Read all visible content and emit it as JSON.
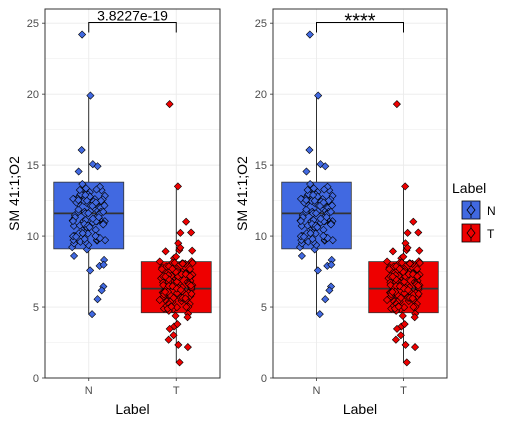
{
  "chart_data": [
    {
      "type": "boxplot",
      "panel": "left",
      "annotation": "3.8227e-19",
      "xlabel": "Label",
      "ylabel": "SM 41:1;O2",
      "categories": [
        "N",
        "T"
      ],
      "ylim": [
        0,
        26
      ],
      "yticks": [
        "0",
        "5",
        "10",
        "15",
        "20",
        "25"
      ],
      "grid": true,
      "boxes": [
        {
          "name": "N",
          "q1": 9.1,
          "median": 11.6,
          "q3": 13.8,
          "whisker_low": 4.5,
          "whisker_high": 19.9,
          "outliers": [
            24.2
          ]
        },
        {
          "name": "T",
          "q1": 4.6,
          "median": 6.3,
          "q3": 8.2,
          "whisker_low": 1.1,
          "whisker_high": 13.5,
          "outliers": [
            19.3
          ]
        }
      ]
    },
    {
      "type": "boxplot",
      "panel": "right",
      "annotation": "****",
      "xlabel": "Label",
      "ylabel": "SM 41:1;O2",
      "categories": [
        "N",
        "T"
      ],
      "ylim": [
        0,
        26
      ],
      "yticks": [
        "0",
        "5",
        "10",
        "15",
        "20",
        "25"
      ],
      "grid": true,
      "boxes": [
        {
          "name": "N",
          "q1": 9.1,
          "median": 11.6,
          "q3": 13.8,
          "whisker_low": 4.5,
          "whisker_high": 19.9,
          "outliers": [
            24.2
          ]
        },
        {
          "name": "T",
          "q1": 4.6,
          "median": 6.3,
          "q3": 8.2,
          "whisker_low": 1.1,
          "whisker_high": 13.5,
          "outliers": [
            19.3
          ]
        }
      ]
    }
  ],
  "legend": {
    "title": "Label",
    "items": [
      {
        "label": "N",
        "color": "#4169E1"
      },
      {
        "label": "T",
        "color": "#EE0000"
      }
    ],
    "placement": "right"
  },
  "colors": {
    "N": "#4169E1",
    "T": "#EE0000"
  }
}
